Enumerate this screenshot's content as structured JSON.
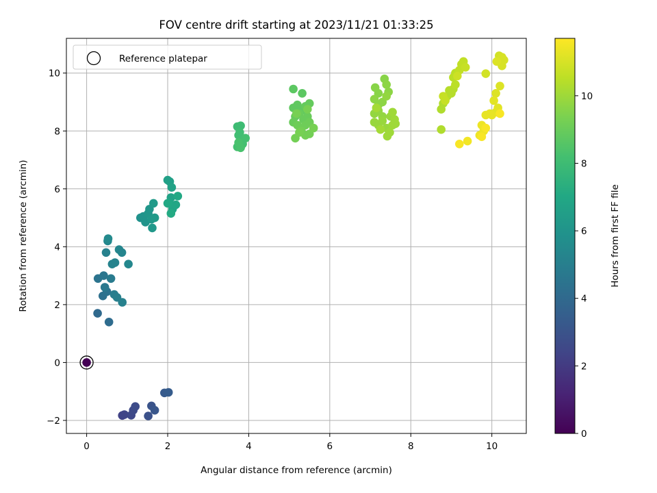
{
  "chart_data": {
    "type": "scatter",
    "title": "FOV centre drift starting at 2023/11/21 01:33:25",
    "xlabel": "Angular distance from reference (arcmin)",
    "ylabel": "Rotation from reference (arcmin)",
    "xlim": [
      -0.5,
      10.85
    ],
    "ylim": [
      -2.45,
      11.2
    ],
    "xticks": [
      0,
      2,
      4,
      6,
      8,
      10
    ],
    "xtick_labels": [
      "0",
      "2",
      "4",
      "6",
      "8",
      "10"
    ],
    "yticks": [
      -2,
      0,
      2,
      4,
      6,
      8,
      10
    ],
    "ytick_labels": [
      "−2",
      "0",
      "2",
      "4",
      "6",
      "8",
      "10"
    ],
    "grid": true,
    "legend": {
      "location": "upper-left",
      "entries": [
        "Reference platepar"
      ]
    },
    "reference_point": {
      "x": 0,
      "y": 0,
      "c": 0
    },
    "colorbar": {
      "label": "Hours from first FF file",
      "range": [
        0,
        11.7
      ],
      "ticks": [
        0,
        2,
        4,
        6,
        8,
        10
      ],
      "tick_labels": [
        "0",
        "2",
        "4",
        "6",
        "8",
        "10"
      ],
      "colormap": "viridis"
    },
    "points": [
      [
        0.88,
        -1.83,
        2.3
      ],
      [
        0.93,
        -1.8,
        2.4
      ],
      [
        1.1,
        -1.82,
        2.5
      ],
      [
        1.15,
        -1.65,
        2.6
      ],
      [
        1.2,
        -1.52,
        2.7
      ],
      [
        1.52,
        -1.85,
        2.9
      ],
      [
        1.6,
        -1.5,
        3.0
      ],
      [
        1.68,
        -1.65,
        3.1
      ],
      [
        1.92,
        -1.05,
        3.3
      ],
      [
        2.02,
        -1.03,
        3.4
      ],
      [
        0.27,
        1.7,
        4.0
      ],
      [
        0.55,
        1.4,
        4.1
      ],
      [
        0.4,
        2.3,
        4.3
      ],
      [
        0.5,
        2.45,
        4.4
      ],
      [
        0.28,
        2.9,
        4.5
      ],
      [
        0.42,
        3.0,
        4.6
      ],
      [
        0.45,
        2.6,
        4.7
      ],
      [
        0.6,
        2.9,
        4.8
      ],
      [
        0.68,
        2.35,
        4.9
      ],
      [
        0.75,
        2.25,
        5.0
      ],
      [
        0.88,
        2.08,
        5.1
      ],
      [
        0.48,
        3.8,
        5.1
      ],
      [
        0.63,
        3.4,
        5.2
      ],
      [
        0.7,
        3.45,
        5.2
      ],
      [
        0.8,
        3.9,
        5.3
      ],
      [
        0.87,
        3.8,
        5.3
      ],
      [
        1.03,
        3.4,
        5.4
      ],
      [
        0.52,
        4.2,
        5.4
      ],
      [
        0.53,
        4.28,
        5.5
      ],
      [
        1.33,
        5.0,
        5.9
      ],
      [
        1.4,
        5.05,
        6.0
      ],
      [
        1.45,
        4.85,
        6.0
      ],
      [
        1.52,
        5.15,
        6.1
      ],
      [
        1.55,
        5.3,
        6.1
      ],
      [
        1.6,
        4.95,
        6.2
      ],
      [
        1.62,
        4.65,
        6.2
      ],
      [
        1.65,
        5.5,
        6.3
      ],
      [
        1.68,
        5.0,
        6.3
      ],
      [
        2.0,
        6.3,
        6.6
      ],
      [
        2.05,
        6.25,
        6.6
      ],
      [
        2.08,
        5.7,
        6.7
      ],
      [
        2.1,
        6.05,
        6.7
      ],
      [
        2.12,
        5.3,
        6.8
      ],
      [
        2.15,
        5.4,
        6.8
      ],
      [
        2.2,
        5.45,
        6.9
      ],
      [
        2.05,
        5.5,
        6.9
      ],
      [
        2.25,
        5.75,
        7.0
      ],
      [
        2.0,
        5.5,
        7.0
      ],
      [
        2.08,
        5.15,
        7.1
      ],
      [
        3.72,
        8.15,
        8.0
      ],
      [
        3.8,
        8.18,
        8.0
      ],
      [
        3.75,
        7.85,
        8.1
      ],
      [
        3.78,
        7.95,
        8.1
      ],
      [
        3.82,
        7.7,
        8.1
      ],
      [
        3.85,
        7.55,
        8.2
      ],
      [
        3.92,
        7.75,
        8.2
      ],
      [
        3.72,
        7.45,
        8.2
      ],
      [
        3.8,
        7.42,
        8.3
      ],
      [
        3.75,
        7.6,
        8.3
      ],
      [
        5.1,
        9.45,
        8.7
      ],
      [
        5.32,
        9.3,
        8.7
      ],
      [
        5.1,
        8.8,
        8.8
      ],
      [
        5.2,
        8.9,
        8.8
      ],
      [
        5.3,
        8.7,
        8.8
      ],
      [
        5.4,
        8.85,
        8.9
      ],
      [
        5.5,
        8.95,
        8.9
      ],
      [
        5.15,
        8.5,
        8.9
      ],
      [
        5.25,
        8.6,
        9.0
      ],
      [
        5.35,
        8.4,
        9.0
      ],
      [
        5.45,
        8.5,
        9.0
      ],
      [
        5.1,
        8.3,
        9.0
      ],
      [
        5.2,
        8.2,
        9.1
      ],
      [
        5.3,
        8.1,
        9.1
      ],
      [
        5.4,
        8.2,
        9.1
      ],
      [
        5.5,
        8.3,
        9.1
      ],
      [
        5.15,
        7.75,
        9.2
      ],
      [
        5.3,
        8.0,
        9.2
      ],
      [
        5.4,
        7.85,
        9.2
      ],
      [
        5.5,
        7.9,
        9.2
      ],
      [
        5.6,
        8.1,
        9.3
      ],
      [
        5.25,
        7.95,
        9.3
      ],
      [
        5.18,
        8.6,
        9.3
      ],
      [
        5.45,
        8.75,
        9.3
      ],
      [
        7.12,
        9.5,
        9.6
      ],
      [
        7.2,
        9.3,
        9.6
      ],
      [
        7.35,
        9.8,
        9.6
      ],
      [
        7.4,
        9.6,
        9.7
      ],
      [
        7.45,
        9.35,
        9.7
      ],
      [
        7.1,
        9.1,
        9.7
      ],
      [
        7.2,
        8.9,
        9.7
      ],
      [
        7.3,
        9.0,
        9.7
      ],
      [
        7.4,
        9.2,
        9.8
      ],
      [
        7.1,
        8.6,
        9.8
      ],
      [
        7.2,
        8.7,
        9.8
      ],
      [
        7.3,
        8.5,
        9.8
      ],
      [
        7.1,
        8.3,
        9.9
      ],
      [
        7.2,
        8.2,
        9.9
      ],
      [
        7.3,
        8.35,
        9.9
      ],
      [
        7.4,
        8.1,
        9.9
      ],
      [
        7.5,
        8.5,
        9.9
      ],
      [
        7.55,
        8.65,
        10.0
      ],
      [
        7.6,
        8.4,
        10.0
      ],
      [
        7.55,
        8.2,
        10.0
      ],
      [
        7.48,
        7.95,
        10.0
      ],
      [
        7.42,
        7.82,
        10.0
      ],
      [
        7.62,
        8.25,
        10.0
      ],
      [
        7.25,
        8.05,
        10.1
      ],
      [
        7.15,
        8.8,
        10.1
      ],
      [
        8.75,
        8.05,
        10.3
      ],
      [
        8.75,
        8.75,
        10.3
      ],
      [
        8.8,
        8.95,
        10.3
      ],
      [
        8.85,
        9.1,
        10.3
      ],
      [
        8.9,
        9.2,
        10.4
      ],
      [
        8.95,
        9.4,
        10.4
      ],
      [
        9.0,
        9.3,
        10.4
      ],
      [
        9.05,
        9.45,
        10.4
      ],
      [
        9.1,
        9.6,
        10.5
      ],
      [
        9.05,
        9.85,
        10.5
      ],
      [
        9.1,
        10.0,
        10.5
      ],
      [
        9.2,
        10.1,
        10.6
      ],
      [
        9.25,
        10.3,
        10.6
      ],
      [
        9.3,
        10.4,
        10.6
      ],
      [
        9.35,
        10.2,
        10.7
      ],
      [
        8.8,
        9.2,
        10.7
      ],
      [
        8.85,
        9.05,
        10.7
      ],
      [
        9.15,
        9.9,
        10.8
      ],
      [
        9.85,
        9.98,
        10.9
      ],
      [
        10.18,
        10.6,
        10.9
      ],
      [
        10.25,
        10.55,
        11.0
      ],
      [
        10.3,
        10.45,
        11.0
      ],
      [
        10.25,
        10.25,
        11.0
      ],
      [
        10.12,
        10.4,
        11.1
      ],
      [
        10.2,
        9.55,
        11.1
      ],
      [
        10.1,
        9.3,
        11.1
      ],
      [
        10.05,
        9.05,
        11.2
      ],
      [
        10.15,
        8.8,
        11.2
      ],
      [
        10.1,
        8.65,
        11.2
      ],
      [
        10.0,
        8.55,
        11.3
      ],
      [
        9.95,
        8.6,
        11.3
      ],
      [
        9.85,
        8.55,
        11.3
      ],
      [
        9.75,
        8.2,
        11.4
      ],
      [
        9.8,
        8.0,
        11.4
      ],
      [
        9.7,
        7.85,
        11.4
      ],
      [
        9.4,
        7.65,
        11.5
      ],
      [
        9.2,
        7.55,
        11.6
      ],
      [
        9.75,
        7.8,
        11.6
      ],
      [
        9.85,
        8.1,
        11.6
      ],
      [
        10.2,
        8.6,
        11.6
      ]
    ]
  }
}
